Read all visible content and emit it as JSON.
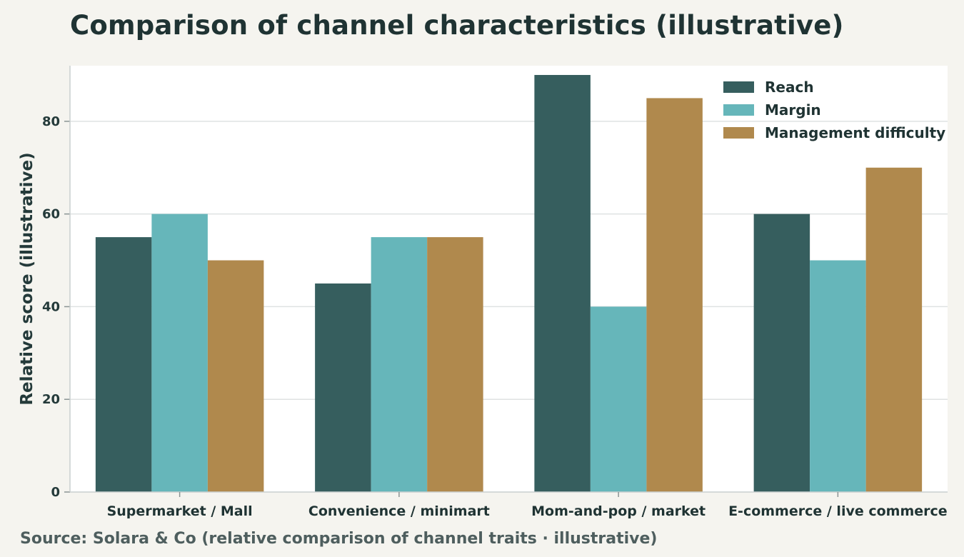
{
  "title": "Comparison of channel characteristics (illustrative)",
  "source": "Source: Solara & Co (relative comparison of channel traits · illustrative)",
  "colors": {
    "background": "#f5f4ef",
    "plot_background": "#ffffff",
    "grid": "#dfe2e2",
    "reach": "#365e5e",
    "margin": "#66b6ba",
    "management_difficulty": "#b0894d"
  },
  "chart_data": {
    "type": "bar",
    "title": "Comparison of channel characteristics (illustrative)",
    "xlabel": "",
    "ylabel": "Relative score (illustrative)",
    "ylim": [
      0,
      92
    ],
    "yticks": [
      0,
      20,
      40,
      60,
      80
    ],
    "grid": true,
    "legend_position": "top-right",
    "categories": [
      "Supermarket / Mall",
      "Convenience / minimart",
      "Mom-and-pop / market",
      "E-commerce / live commerce"
    ],
    "series": [
      {
        "name": "Reach",
        "color": "#365e5e",
        "values": [
          55,
          45,
          90,
          60
        ]
      },
      {
        "name": "Margin",
        "color": "#66b6ba",
        "values": [
          60,
          55,
          40,
          50
        ]
      },
      {
        "name": "Management difficulty",
        "color": "#b0894d",
        "values": [
          50,
          55,
          85,
          70
        ]
      }
    ]
  }
}
